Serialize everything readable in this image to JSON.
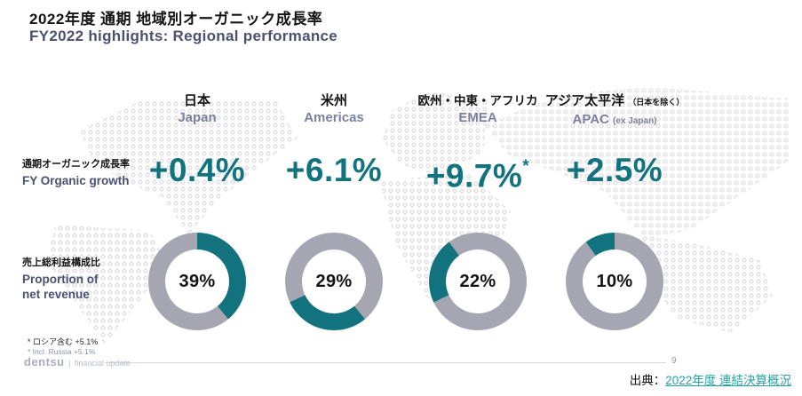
{
  "title": {
    "jp": "2022年度 通期 地域別オーガニック成長率",
    "en": "FY2022 highlights: Regional performance"
  },
  "row_labels": {
    "growth_jp": "通期オーガニック成長率",
    "growth_en": "FY Organic growth",
    "revenue_jp": "売上総利益構成比",
    "revenue_en_line1": "Proportion of",
    "revenue_en_line2": "net revenue"
  },
  "regions": [
    {
      "name_jp": "日本",
      "name_en": "Japan",
      "growth": "+0.4%",
      "share_label": "39%"
    },
    {
      "name_jp": "米州",
      "name_en": "Americas",
      "growth": "+6.1%",
      "share_label": "29%"
    },
    {
      "name_jp": "欧州・中東・アフリカ",
      "name_en": "EMEA",
      "growth": "+9.7%",
      "growth_note": "*",
      "share_label": "22%"
    },
    {
      "name_jp": "アジア太平洋",
      "name_jp_suffix": "（日本を除く）",
      "name_en": "APAC",
      "name_en_suffix": "(ex Japan)",
      "growth": "+2.5%",
      "share_label": "10%"
    }
  ],
  "footnotes": {
    "line1": "* ロシア含む +5.1%",
    "line2": "* Incl. Russia +5.1%"
  },
  "footer": {
    "brand": "dentsu",
    "pipe": "|",
    "brand_suffix": "financial update",
    "page": "9",
    "source_prefix": "出典：",
    "source_link": "2022年度 連結決算概況"
  },
  "colors": {
    "teal": "#12737e",
    "donut_gray": "#a6a6b2",
    "navy": "#4a5171",
    "region_en_gray": "#7b80a0",
    "link_teal": "#2aa1a4"
  },
  "chart_data": {
    "type": "pie",
    "title": "売上総利益構成比 / Proportion of net revenue",
    "categories": [
      "日本 Japan",
      "米州 Americas",
      "欧州・中東・アフリカ EMEA",
      "アジア太平洋 APAC (ex Japan)"
    ],
    "values": [
      39,
      29,
      22,
      10
    ],
    "unit": "%",
    "layout": "four donut charts; each region's share drawn in teal on a shared gray ring, segments cumulative clockwise from 12 o'clock",
    "related_metrics": {
      "name": "通期オーガニック成長率 / FY Organic growth",
      "categories": [
        "Japan",
        "Americas",
        "EMEA",
        "APAC (ex Japan)"
      ],
      "values": [
        "+0.4%",
        "+6.1%",
        "+9.7%*",
        "+2.5%"
      ],
      "footnote": "* ロシア含む +5.1% / Incl. Russia +5.1%"
    }
  }
}
